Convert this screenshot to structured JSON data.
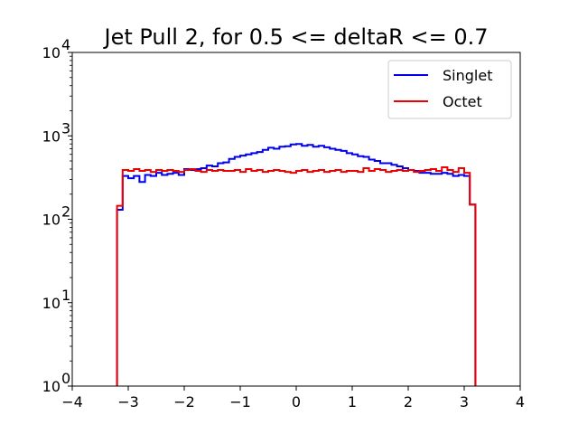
{
  "chart_data": {
    "type": "line",
    "subtype": "step-histogram",
    "title": "Jet Pull 2, for 0.5 <= deltaR <= 0.7",
    "xlabel": "",
    "ylabel": "",
    "xlim": [
      -4,
      4
    ],
    "ylim": [
      1,
      10000
    ],
    "yscale": "log",
    "grid": false,
    "legend_position": "top-right",
    "x_ticks": [
      -4,
      -3,
      -2,
      -1,
      0,
      1,
      2,
      3,
      4
    ],
    "x_tick_labels": [
      "−4",
      "−3",
      "−2",
      "−1",
      "0",
      "1",
      "2",
      "3",
      "4"
    ],
    "y_ticks": [
      {
        "value": 1,
        "base": "10",
        "exp": "0"
      },
      {
        "value": 10,
        "base": "10",
        "exp": "1"
      },
      {
        "value": 100,
        "base": "10",
        "exp": "2"
      },
      {
        "value": 1000,
        "base": "10",
        "exp": "3"
      },
      {
        "value": 10000,
        "base": "10",
        "exp": "4"
      }
    ],
    "bin_edges": [
      -3.2,
      -3.1,
      -3.0,
      -2.9,
      -2.8,
      -2.7,
      -2.6,
      -2.5,
      -2.4,
      -2.3,
      -2.2,
      -2.1,
      -2.0,
      -1.9,
      -1.8,
      -1.7,
      -1.6,
      -1.5,
      -1.4,
      -1.3,
      -1.2,
      -1.1,
      -1.0,
      -0.9,
      -0.8,
      -0.7,
      -0.6,
      -0.5,
      -0.4,
      -0.3,
      -0.2,
      -0.1,
      0.0,
      0.1,
      0.2,
      0.3,
      0.4,
      0.5,
      0.6,
      0.7,
      0.8,
      0.9,
      1.0,
      1.1,
      1.2,
      1.3,
      1.4,
      1.5,
      1.6,
      1.7,
      1.8,
      1.9,
      2.0,
      2.1,
      2.2,
      2.3,
      2.4,
      2.5,
      2.6,
      2.7,
      2.8,
      2.9,
      3.0,
      3.1,
      3.2
    ],
    "series": [
      {
        "name": "Singlet",
        "color": "#0000ee",
        "values": [
          130,
          330,
          310,
          330,
          280,
          340,
          330,
          360,
          340,
          350,
          360,
          340,
          400,
          390,
          400,
          410,
          440,
          430,
          470,
          480,
          530,
          560,
          580,
          600,
          620,
          640,
          680,
          720,
          700,
          740,
          750,
          790,
          800,
          760,
          780,
          740,
          760,
          730,
          700,
          680,
          660,
          620,
          600,
          570,
          560,
          520,
          500,
          470,
          470,
          450,
          430,
          410,
          390,
          380,
          360,
          360,
          350,
          350,
          360,
          350,
          330,
          340,
          330,
          150
        ]
      },
      {
        "name": "Octet",
        "color": "#ee0000",
        "values": [
          145,
          390,
          380,
          400,
          380,
          390,
          370,
          390,
          380,
          390,
          380,
          370,
          390,
          400,
          380,
          370,
          390,
          380,
          390,
          380,
          380,
          390,
          370,
          400,
          380,
          390,
          370,
          380,
          390,
          380,
          370,
          360,
          380,
          390,
          370,
          380,
          390,
          370,
          380,
          390,
          370,
          380,
          380,
          370,
          410,
          380,
          400,
          390,
          370,
          380,
          390,
          380,
          390,
          370,
          380,
          390,
          400,
          380,
          420,
          390,
          370,
          410,
          360,
          150
        ]
      }
    ]
  }
}
